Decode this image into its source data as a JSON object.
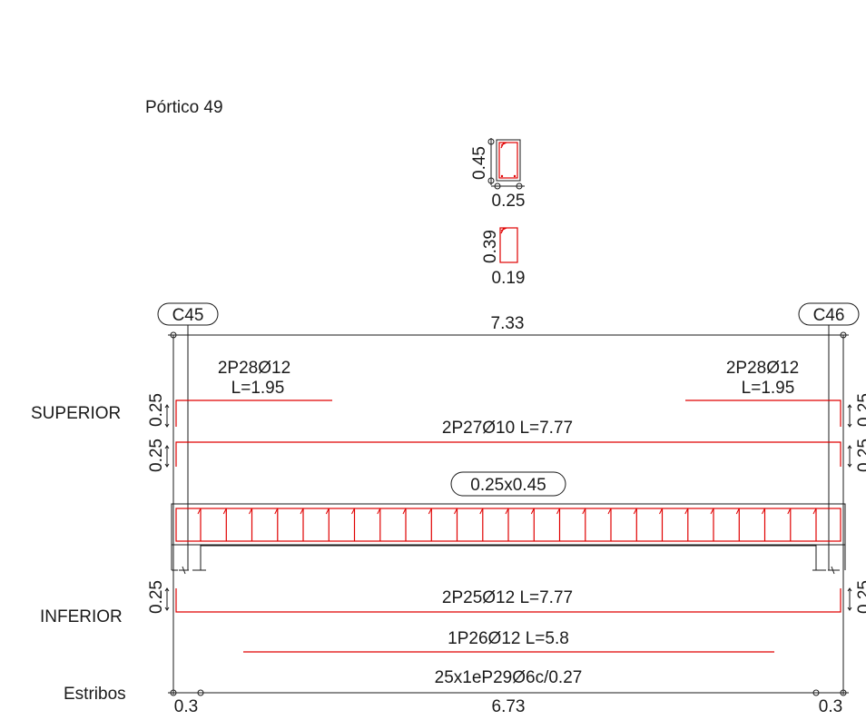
{
  "title": "Pórtico 49",
  "section_main": {
    "height": "0.45",
    "width": "0.25"
  },
  "section_inner": {
    "height": "0.39",
    "width": "0.19"
  },
  "columns": {
    "left": "C45",
    "right": "C46"
  },
  "span_total": "7.33",
  "beam_size": "0.25x0.45",
  "superior": {
    "label": "SUPERIOR",
    "left_bar": {
      "name": "2P28Ø12",
      "length": "L=1.95"
    },
    "right_bar": {
      "name": "2P28Ø12",
      "length": "L=1.95"
    },
    "through_bar": "2P27Ø10 L=7.77",
    "anchor_1": "0.25",
    "anchor_2": "0.25"
  },
  "inferior": {
    "label": "INFERIOR",
    "main_bar": "2P25Ø12 L=7.77",
    "extra_bar": "1P26Ø12 L=5.8",
    "anchor": "0.25"
  },
  "estribos": {
    "label": "Estribos",
    "spec": "25x1eP29Ø6c/0.27",
    "left_offset": "0.3",
    "right_offset": "0.3",
    "mid_length": "6.73"
  },
  "colors": {
    "ink": "#1a1a1a",
    "rebar": "#e00000"
  }
}
